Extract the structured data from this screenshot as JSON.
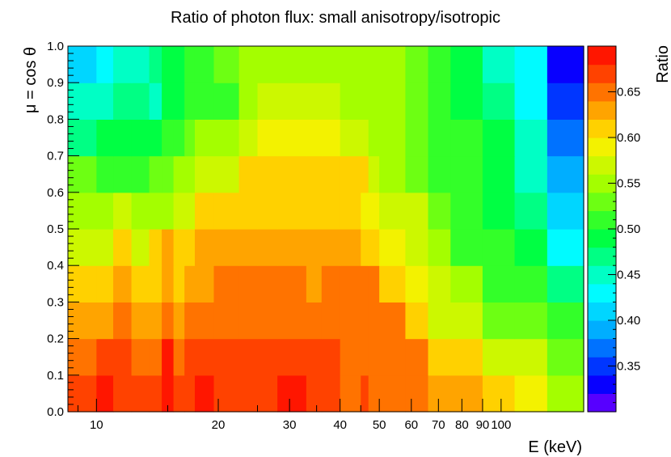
{
  "chart_data": {
    "type": "heatmap",
    "title": "Ratio of photon flux: small anisotropy/isotropic",
    "xlabel": "E (keV)",
    "ylabel": "μ = cos θ",
    "zlabel": "Ratio",
    "x_scale": "log",
    "xlim": [
      8.5,
      160
    ],
    "ylim": [
      0.0,
      1.0
    ],
    "zlim": [
      0.3,
      0.7
    ],
    "x_tick_labels": [
      "10",
      "20",
      "30",
      "40",
      "50",
      "60",
      "70",
      "80",
      "90",
      "100"
    ],
    "y_tick_labels": [
      "0.0",
      "0.1",
      "0.2",
      "0.3",
      "0.4",
      "0.5",
      "0.6",
      "0.7",
      "0.8",
      "0.9",
      "1.0"
    ],
    "z_tick_labels": [
      "0.35",
      "0.40",
      "0.45",
      "0.50",
      "0.55",
      "0.60",
      "0.65"
    ],
    "x_bin_edges": [
      8.5,
      10.0,
      11.0,
      12.2,
      13.5,
      14.5,
      15.5,
      16.5,
      17.5,
      19.5,
      22.5,
      25.0,
      28.0,
      33.0,
      36.0,
      40.0,
      45.0,
      47.0,
      50.0,
      58.0,
      66.0,
      75.0,
      90.0,
      108.0,
      130.0,
      160.0
    ],
    "y_bin_edges": [
      0.0,
      0.1,
      0.2,
      0.3,
      0.4,
      0.5,
      0.6,
      0.7,
      0.8,
      0.9,
      1.0
    ],
    "values": [
      [
        0.665,
        0.68,
        0.675,
        0.665,
        0.665,
        0.68,
        0.66,
        0.675,
        0.68,
        0.675,
        0.665,
        0.665,
        0.68,
        0.665,
        0.665,
        0.64,
        0.665,
        0.64,
        0.65,
        0.65,
        0.63,
        0.63,
        0.6,
        0.59,
        0.54
      ],
      [
        0.65,
        0.67,
        0.665,
        0.645,
        0.65,
        0.68,
        0.65,
        0.66,
        0.665,
        0.665,
        0.665,
        0.665,
        0.665,
        0.66,
        0.66,
        0.655,
        0.655,
        0.655,
        0.655,
        0.655,
        0.6,
        0.6,
        0.57,
        0.57,
        0.52
      ],
      [
        0.63,
        0.63,
        0.64,
        0.63,
        0.63,
        0.64,
        0.63,
        0.64,
        0.64,
        0.65,
        0.65,
        0.65,
        0.64,
        0.64,
        0.64,
        0.64,
        0.64,
        0.64,
        0.64,
        0.6,
        0.57,
        0.56,
        0.53,
        0.53,
        0.5
      ],
      [
        0.6,
        0.605,
        0.63,
        0.605,
        0.605,
        0.63,
        0.605,
        0.63,
        0.63,
        0.64,
        0.64,
        0.64,
        0.64,
        0.62,
        0.64,
        0.64,
        0.64,
        0.64,
        0.6,
        0.58,
        0.56,
        0.54,
        0.51,
        0.505,
        0.46
      ],
      [
        0.565,
        0.575,
        0.6,
        0.575,
        0.6,
        0.62,
        0.6,
        0.6,
        0.63,
        0.63,
        0.63,
        0.63,
        0.63,
        0.63,
        0.62,
        0.62,
        0.61,
        0.61,
        0.58,
        0.56,
        0.54,
        0.51,
        0.5,
        0.48,
        0.42
      ],
      [
        0.54,
        0.555,
        0.57,
        0.55,
        0.545,
        0.555,
        0.57,
        0.575,
        0.6,
        0.605,
        0.61,
        0.61,
        0.61,
        0.61,
        0.61,
        0.6,
        0.58,
        0.58,
        0.57,
        0.56,
        0.53,
        0.5,
        0.49,
        0.47,
        0.41
      ],
      [
        0.52,
        0.5,
        0.505,
        0.51,
        0.53,
        0.53,
        0.55,
        0.55,
        0.56,
        0.56,
        0.6,
        0.6,
        0.6,
        0.6,
        0.6,
        0.6,
        0.6,
        0.56,
        0.55,
        0.53,
        0.51,
        0.5,
        0.49,
        0.45,
        0.39
      ],
      [
        0.47,
        0.48,
        0.48,
        0.49,
        0.49,
        0.5,
        0.5,
        0.53,
        0.54,
        0.54,
        0.56,
        0.58,
        0.59,
        0.59,
        0.58,
        0.57,
        0.56,
        0.55,
        0.54,
        0.53,
        0.51,
        0.5,
        0.48,
        0.44,
        0.37
      ],
      [
        0.44,
        0.44,
        0.46,
        0.47,
        0.45,
        0.48,
        0.48,
        0.5,
        0.51,
        0.5,
        0.55,
        0.56,
        0.56,
        0.56,
        0.56,
        0.55,
        0.55,
        0.55,
        0.54,
        0.52,
        0.51,
        0.49,
        0.46,
        0.42,
        0.35
      ],
      [
        0.41,
        0.42,
        0.44,
        0.44,
        0.46,
        0.48,
        0.48,
        0.5,
        0.51,
        0.52,
        0.54,
        0.55,
        0.55,
        0.55,
        0.55,
        0.55,
        0.55,
        0.55,
        0.54,
        0.52,
        0.5,
        0.48,
        0.45,
        0.42,
        0.32
      ]
    ]
  }
}
